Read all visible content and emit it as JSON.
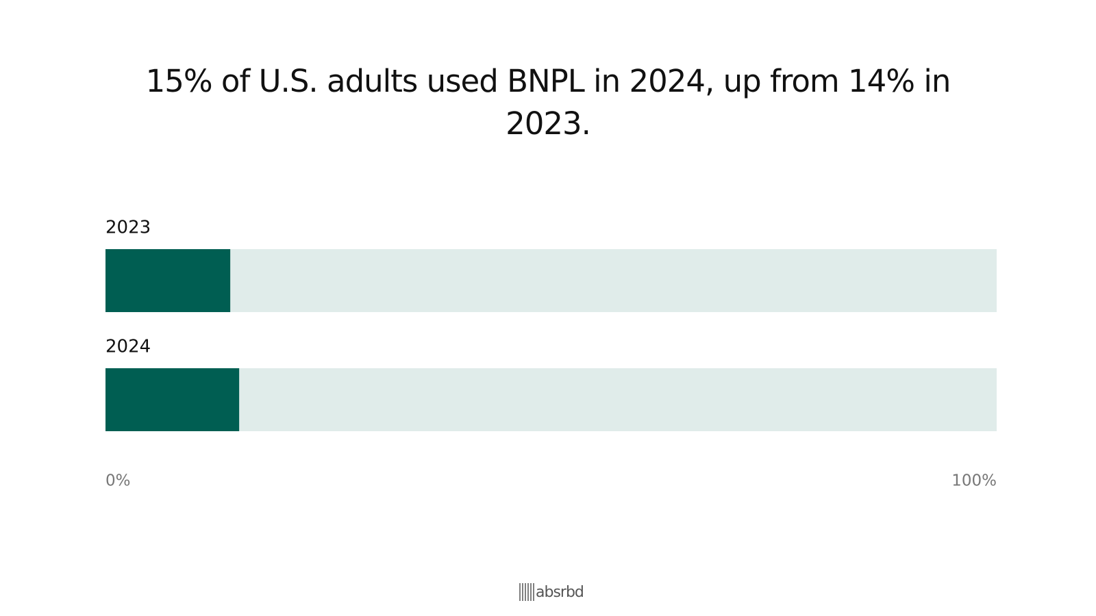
{
  "chart_data": {
    "type": "bar",
    "orientation": "horizontal",
    "title": "15% of U.S. adults used BNPL in 2024, up from 14% in 2023.",
    "categories": [
      "2023",
      "2024"
    ],
    "values": [
      14,
      15
    ],
    "color": "#005e52",
    "track_color": "#e0ecea",
    "xlim": [
      0,
      100
    ],
    "xticks": [
      {
        "value": 0,
        "label": "0%"
      },
      {
        "value": 100,
        "label": "100%"
      }
    ],
    "brand": "absrbd"
  }
}
